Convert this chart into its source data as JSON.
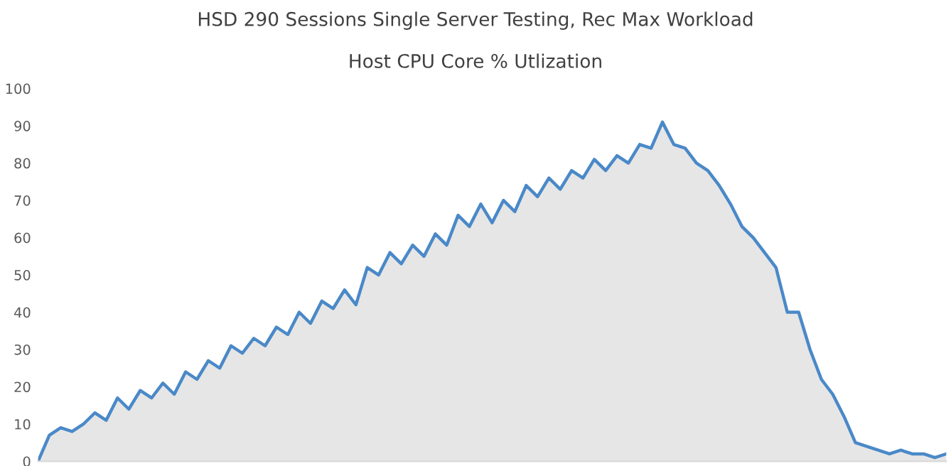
{
  "chart_data": {
    "type": "area",
    "title": "HSD 290 Sessions Single Server Testing, Rec Max Workload",
    "subtitle": "Host CPU Core % Utlization",
    "categories": [
      null,
      null,
      null,
      null,
      null,
      null,
      null,
      null,
      null,
      null,
      null,
      null,
      null,
      null,
      null,
      null,
      null,
      null,
      null,
      null,
      null,
      null,
      null,
      null,
      null,
      null,
      null,
      null,
      null,
      null,
      null,
      null,
      null,
      null,
      null,
      null,
      null,
      null,
      null,
      null,
      null,
      null,
      null,
      null,
      null,
      null,
      null,
      null,
      null,
      null,
      null,
      null,
      null,
      null,
      null,
      null,
      null,
      null,
      null,
      null,
      null,
      null,
      null,
      null,
      null,
      null,
      null,
      null,
      null,
      null,
      null,
      null,
      null,
      null,
      null,
      null,
      null,
      null,
      null,
      null,
      null
    ],
    "series": [
      {
        "color": "#4a89c8",
        "values": [
          0,
          7,
          9,
          8,
          10,
          13,
          11,
          17,
          14,
          19,
          17,
          21,
          18,
          24,
          22,
          27,
          25,
          31,
          29,
          33,
          31,
          36,
          34,
          40,
          37,
          43,
          41,
          46,
          42,
          52,
          50,
          56,
          53,
          58,
          55,
          61,
          58,
          66,
          63,
          69,
          64,
          70,
          67,
          74,
          71,
          76,
          73,
          78,
          76,
          81,
          78,
          82,
          80,
          85,
          84,
          91,
          85,
          84,
          80,
          78,
          74,
          69,
          63,
          60,
          56,
          52,
          40,
          40,
          30,
          22,
          18,
          12,
          5,
          4,
          3,
          2,
          3,
          2,
          2,
          1,
          2
        ]
      }
    ],
    "ylim": [
      0,
      100
    ],
    "yticks": [
      0,
      10,
      20,
      30,
      40,
      50,
      60,
      70,
      80,
      90,
      100
    ],
    "grid": false,
    "legend": false
  }
}
